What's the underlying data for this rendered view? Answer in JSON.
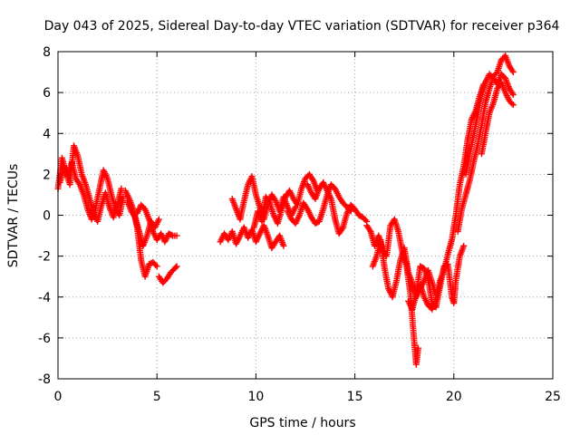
{
  "chart_data": {
    "type": "scatter",
    "title": "Day 043 of 2025, Sidereal Day-to-day VTEC variation (SDTVAR) for receiver p364",
    "xlabel": "GPS time / hours",
    "ylabel": "SDTVAR / TECUs",
    "xlim": [
      0,
      25
    ],
    "ylim": [
      -8,
      8
    ],
    "xticks": [
      0,
      5,
      10,
      15,
      20,
      25
    ],
    "yticks": [
      -8,
      -6,
      -4,
      -2,
      0,
      2,
      4,
      6,
      8
    ],
    "xtick_labels": [
      "0",
      "5",
      "10",
      "15",
      "20",
      "25"
    ],
    "ytick_labels": [
      "-8",
      "-6",
      "-4",
      "-2",
      "0",
      "2",
      "4",
      "6",
      "8"
    ],
    "grid": true,
    "marker": "+",
    "series": [
      {
        "name": "SDTVAR",
        "color": "#ff0000",
        "tracks": [
          [
            [
              0.0,
              1.3
            ],
            [
              0.2,
              2.8
            ],
            [
              0.4,
              2.1
            ],
            [
              0.6,
              1.5
            ],
            [
              0.8,
              3.4
            ],
            [
              1.0,
              2.9
            ],
            [
              1.2,
              2.0
            ],
            [
              1.4,
              1.5
            ],
            [
              1.6,
              0.8
            ],
            [
              1.8,
              0.1
            ],
            [
              2.0,
              -0.3
            ],
            [
              2.2,
              0.5
            ],
            [
              2.4,
              1.1
            ],
            [
              2.6,
              0.4
            ],
            [
              2.8,
              -0.1
            ],
            [
              3.0,
              0.5
            ],
            [
              3.2,
              1.3
            ]
          ],
          [
            [
              0.1,
              1.6
            ],
            [
              0.3,
              2.4
            ],
            [
              0.5,
              1.9
            ],
            [
              0.7,
              2.6
            ],
            [
              0.9,
              1.8
            ],
            [
              1.1,
              1.5
            ],
            [
              1.3,
              1.0
            ],
            [
              1.5,
              0.3
            ],
            [
              1.7,
              -0.2
            ],
            [
              1.9,
              0.4
            ],
            [
              2.1,
              1.3
            ],
            [
              2.3,
              2.2
            ],
            [
              2.5,
              1.8
            ],
            [
              2.7,
              1.0
            ],
            [
              2.9,
              0.3
            ],
            [
              3.1,
              0.0
            ],
            [
              3.3,
              0.9
            ]
          ],
          [
            [
              3.4,
              1.2
            ],
            [
              3.6,
              0.8
            ],
            [
              3.8,
              0.3
            ],
            [
              4.0,
              -0.6
            ],
            [
              4.2,
              -2.2
            ],
            [
              4.4,
              -3.0
            ],
            [
              4.6,
              -2.4
            ],
            [
              4.8,
              -2.3
            ],
            [
              5.0,
              -2.5
            ]
          ],
          [
            [
              3.5,
              0.7
            ],
            [
              3.7,
              0.2
            ],
            [
              3.9,
              -0.1
            ],
            [
              4.1,
              -0.8
            ],
            [
              4.3,
              -1.5
            ],
            [
              4.5,
              -1.0
            ],
            [
              4.7,
              -0.3
            ],
            [
              4.9,
              -0.6
            ],
            [
              5.1,
              -0.2
            ]
          ],
          [
            [
              4.0,
              0.1
            ],
            [
              4.2,
              0.5
            ],
            [
              4.4,
              0.3
            ],
            [
              4.6,
              -0.2
            ],
            [
              4.8,
              -0.8
            ],
            [
              5.0,
              -1.2
            ],
            [
              5.2,
              -0.9
            ],
            [
              5.4,
              -1.3
            ],
            [
              5.6,
              -0.9
            ],
            [
              5.8,
              -1.0
            ],
            [
              6.0,
              -1.0
            ]
          ],
          [
            [
              5.1,
              -3.0
            ],
            [
              5.3,
              -3.3
            ],
            [
              5.5,
              -3.1
            ],
            [
              5.7,
              -2.8
            ],
            [
              5.9,
              -2.6
            ],
            [
              6.0,
              -2.5
            ]
          ],
          [
            [
              8.2,
              -1.3
            ],
            [
              8.4,
              -0.9
            ],
            [
              8.6,
              -1.2
            ],
            [
              8.8,
              -0.8
            ],
            [
              9.0,
              -1.4
            ],
            [
              9.2,
              -1.0
            ],
            [
              9.4,
              -0.6
            ],
            [
              9.6,
              -1.1
            ],
            [
              9.8,
              -0.7
            ],
            [
              10.0,
              -1.3
            ],
            [
              10.2,
              -0.9
            ],
            [
              10.4,
              -0.5
            ],
            [
              10.6,
              -1.0
            ],
            [
              10.8,
              -1.6
            ],
            [
              11.0,
              -1.3
            ],
            [
              11.2,
              -1.0
            ],
            [
              11.4,
              -1.5
            ]
          ],
          [
            [
              8.8,
              0.8
            ],
            [
              9.0,
              0.3
            ],
            [
              9.2,
              -0.2
            ],
            [
              9.4,
              0.7
            ],
            [
              9.6,
              1.5
            ],
            [
              9.8,
              1.9
            ],
            [
              10.0,
              1.0
            ],
            [
              10.2,
              0.4
            ],
            [
              10.4,
              -0.2
            ],
            [
              10.6,
              0.5
            ],
            [
              10.8,
              1.0
            ],
            [
              11.0,
              0.7
            ],
            [
              11.2,
              0.2
            ],
            [
              11.4,
              0.9
            ],
            [
              11.6,
              0.4
            ],
            [
              11.8,
              0.0
            ],
            [
              12.0,
              0.4
            ]
          ],
          [
            [
              9.9,
              -0.6
            ],
            [
              10.1,
              0.2
            ],
            [
              10.3,
              -0.3
            ],
            [
              10.5,
              0.9
            ],
            [
              10.7,
              0.6
            ],
            [
              10.9,
              0.0
            ],
            [
              11.1,
              -0.4
            ],
            [
              11.3,
              0.3
            ],
            [
              11.5,
              0.9
            ],
            [
              11.7,
              1.2
            ],
            [
              11.9,
              0.8
            ],
            [
              12.1,
              0.5
            ],
            [
              12.3,
              1.3
            ],
            [
              12.5,
              1.8
            ],
            [
              12.7,
              2.0
            ],
            [
              12.9,
              1.7
            ],
            [
              13.1,
              1.2
            ]
          ],
          [
            [
              11.6,
              0.2
            ],
            [
              11.8,
              -0.2
            ],
            [
              12.0,
              -0.4
            ],
            [
              12.2,
              0.0
            ],
            [
              12.4,
              0.6
            ],
            [
              12.6,
              0.3
            ],
            [
              12.8,
              -0.1
            ],
            [
              13.0,
              -0.4
            ],
            [
              13.2,
              -0.3
            ],
            [
              13.4,
              0.3
            ],
            [
              13.6,
              1.0
            ],
            [
              13.8,
              1.5
            ],
            [
              14.0,
              1.3
            ],
            [
              14.2,
              0.9
            ],
            [
              14.4,
              0.6
            ],
            [
              14.6,
              0.4
            ],
            [
              14.8,
              0.2
            ]
          ],
          [
            [
              12.6,
              1.5
            ],
            [
              12.8,
              1.1
            ],
            [
              13.0,
              0.8
            ],
            [
              13.2,
              1.3
            ],
            [
              13.4,
              1.6
            ],
            [
              13.6,
              1.2
            ],
            [
              13.8,
              0.8
            ],
            [
              14.0,
              -0.2
            ],
            [
              14.2,
              -0.9
            ],
            [
              14.4,
              -0.6
            ],
            [
              14.6,
              0.1
            ],
            [
              14.8,
              0.5
            ],
            [
              15.0,
              0.3
            ],
            [
              15.2,
              0.0
            ],
            [
              15.4,
              -0.1
            ],
            [
              15.6,
              -0.3
            ]
          ],
          [
            [
              15.6,
              -0.5
            ],
            [
              15.8,
              -0.8
            ],
            [
              16.0,
              -1.5
            ],
            [
              16.2,
              -1.0
            ],
            [
              16.4,
              -1.7
            ],
            [
              16.6,
              -2.0
            ],
            [
              16.8,
              -0.5
            ],
            [
              17.0,
              -0.2
            ],
            [
              17.2,
              -0.8
            ],
            [
              17.4,
              -1.8
            ],
            [
              17.6,
              -2.4
            ],
            [
              17.8,
              -3.8
            ],
            [
              18.0,
              -6.2
            ],
            [
              18.1,
              -7.3
            ],
            [
              18.2,
              -6.5
            ]
          ],
          [
            [
              15.9,
              -2.5
            ],
            [
              16.1,
              -2.0
            ],
            [
              16.3,
              -1.2
            ],
            [
              16.5,
              -2.6
            ],
            [
              16.7,
              -3.6
            ],
            [
              16.9,
              -4.0
            ],
            [
              17.1,
              -3.2
            ],
            [
              17.3,
              -2.2
            ],
            [
              17.5,
              -1.6
            ],
            [
              17.7,
              -2.8
            ],
            [
              17.9,
              -3.3
            ],
            [
              18.1,
              -4.0
            ],
            [
              18.3,
              -3.6
            ],
            [
              18.5,
              -3.2
            ],
            [
              18.7,
              -2.7
            ],
            [
              18.9,
              -3.3
            ],
            [
              19.1,
              -3.9
            ]
          ],
          [
            [
              17.7,
              -4.2
            ],
            [
              17.9,
              -4.6
            ],
            [
              18.1,
              -3.9
            ],
            [
              18.3,
              -2.5
            ],
            [
              18.5,
              -2.6
            ],
            [
              18.7,
              -3.1
            ],
            [
              18.9,
              -4.3
            ],
            [
              19.1,
              -4.5
            ],
            [
              19.3,
              -3.5
            ],
            [
              19.5,
              -2.5
            ],
            [
              19.7,
              -2.4
            ],
            [
              19.9,
              -4.0
            ],
            [
              20.0,
              -4.3
            ],
            [
              20.1,
              -3.2
            ],
            [
              20.3,
              -2.0
            ],
            [
              20.5,
              -1.5
            ]
          ],
          [
            [
              18.3,
              -3.4
            ],
            [
              18.5,
              -4.0
            ],
            [
              18.7,
              -4.4
            ],
            [
              18.9,
              -4.6
            ],
            [
              19.1,
              -4.1
            ],
            [
              19.3,
              -3.2
            ],
            [
              19.5,
              -2.7
            ],
            [
              19.7,
              -1.9
            ],
            [
              19.9,
              -1.2
            ],
            [
              20.1,
              0.0
            ],
            [
              20.3,
              1.5
            ],
            [
              20.5,
              2.4
            ],
            [
              20.7,
              3.7
            ],
            [
              20.9,
              4.7
            ],
            [
              21.1,
              5.1
            ],
            [
              21.3,
              5.8
            ],
            [
              21.5,
              6.4
            ]
          ],
          [
            [
              20.2,
              -0.8
            ],
            [
              20.4,
              0.3
            ],
            [
              20.6,
              1.0
            ],
            [
              20.8,
              1.7
            ],
            [
              21.0,
              2.6
            ],
            [
              21.2,
              3.4
            ],
            [
              21.4,
              4.4
            ],
            [
              21.6,
              5.5
            ],
            [
              21.8,
              6.2
            ],
            [
              22.0,
              6.8
            ],
            [
              22.2,
              7.0
            ],
            [
              22.4,
              7.6
            ],
            [
              22.6,
              7.8
            ],
            [
              22.8,
              7.3
            ],
            [
              23.0,
              7.0
            ]
          ],
          [
            [
              21.4,
              3.0
            ],
            [
              21.6,
              4.0
            ],
            [
              21.8,
              5.0
            ],
            [
              22.0,
              5.5
            ],
            [
              22.2,
              6.2
            ],
            [
              22.4,
              6.5
            ],
            [
              22.6,
              6.0
            ],
            [
              22.8,
              5.6
            ],
            [
              23.0,
              5.4
            ]
          ],
          [
            [
              20.6,
              2.0
            ],
            [
              20.8,
              3.0
            ],
            [
              21.0,
              3.9
            ],
            [
              21.2,
              4.9
            ],
            [
              21.4,
              5.9
            ],
            [
              21.6,
              6.5
            ],
            [
              21.8,
              6.9
            ],
            [
              22.0,
              6.7
            ],
            [
              22.2,
              6.4
            ],
            [
              22.4,
              6.9
            ],
            [
              22.6,
              6.7
            ],
            [
              22.8,
              6.2
            ],
            [
              23.0,
              5.9
            ]
          ]
        ]
      }
    ]
  }
}
